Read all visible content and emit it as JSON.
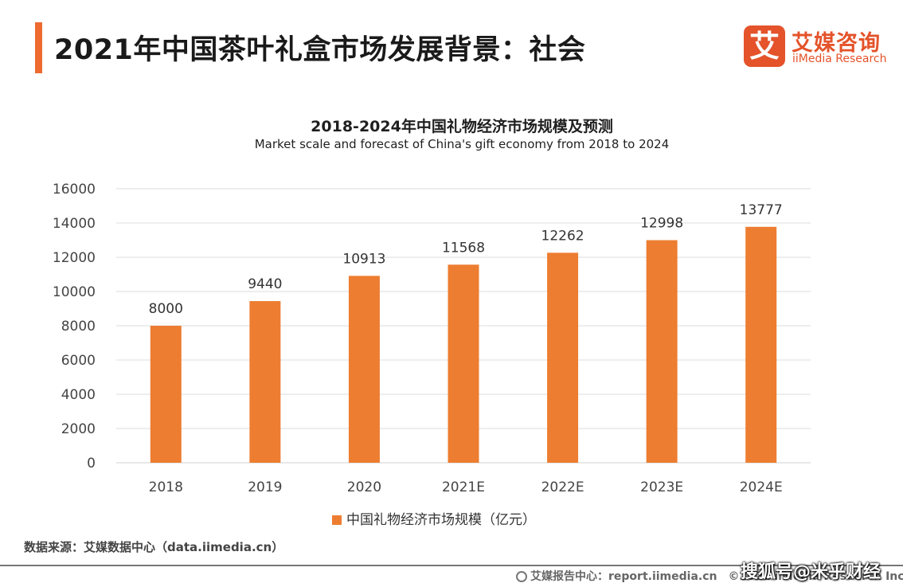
{
  "header": {
    "title": "2021年中国茶叶礼盒市场发展背景：社会",
    "accent_color": "#ee6a2f"
  },
  "logo": {
    "mark": "艾",
    "name_cn": "艾媒咨询",
    "name_en": "iiMedia Research",
    "color": "#e4532a"
  },
  "chart_data": {
    "type": "bar",
    "title": "2018-2024年中国礼物经济市场规模及预测",
    "subtitle": "Market scale and forecast of China's gift economy from 2018 to 2024",
    "categories": [
      "2018",
      "2019",
      "2020",
      "2021E",
      "2022E",
      "2023E",
      "2024E"
    ],
    "series": [
      {
        "name": "中国礼物经济市场规模（亿元）",
        "values": [
          8000,
          9440,
          10913,
          11568,
          12262,
          12998,
          13777
        ],
        "color": "#ed7d31"
      }
    ],
    "ylim": [
      0,
      16000
    ],
    "yticks": [
      0,
      2000,
      4000,
      6000,
      8000,
      10000,
      12000,
      14000,
      16000
    ],
    "grid": true,
    "legend": "bottom",
    "data_labels": true
  },
  "source": {
    "text": "数据来源：艾媒数据中心（data.iimedia.cn）"
  },
  "footer": {
    "text": "艾媒报告中心：report.iimedia.cn　©2021 iiMedia Research Inc"
  },
  "watermark": {
    "text": "搜狐号@米乎财经"
  }
}
